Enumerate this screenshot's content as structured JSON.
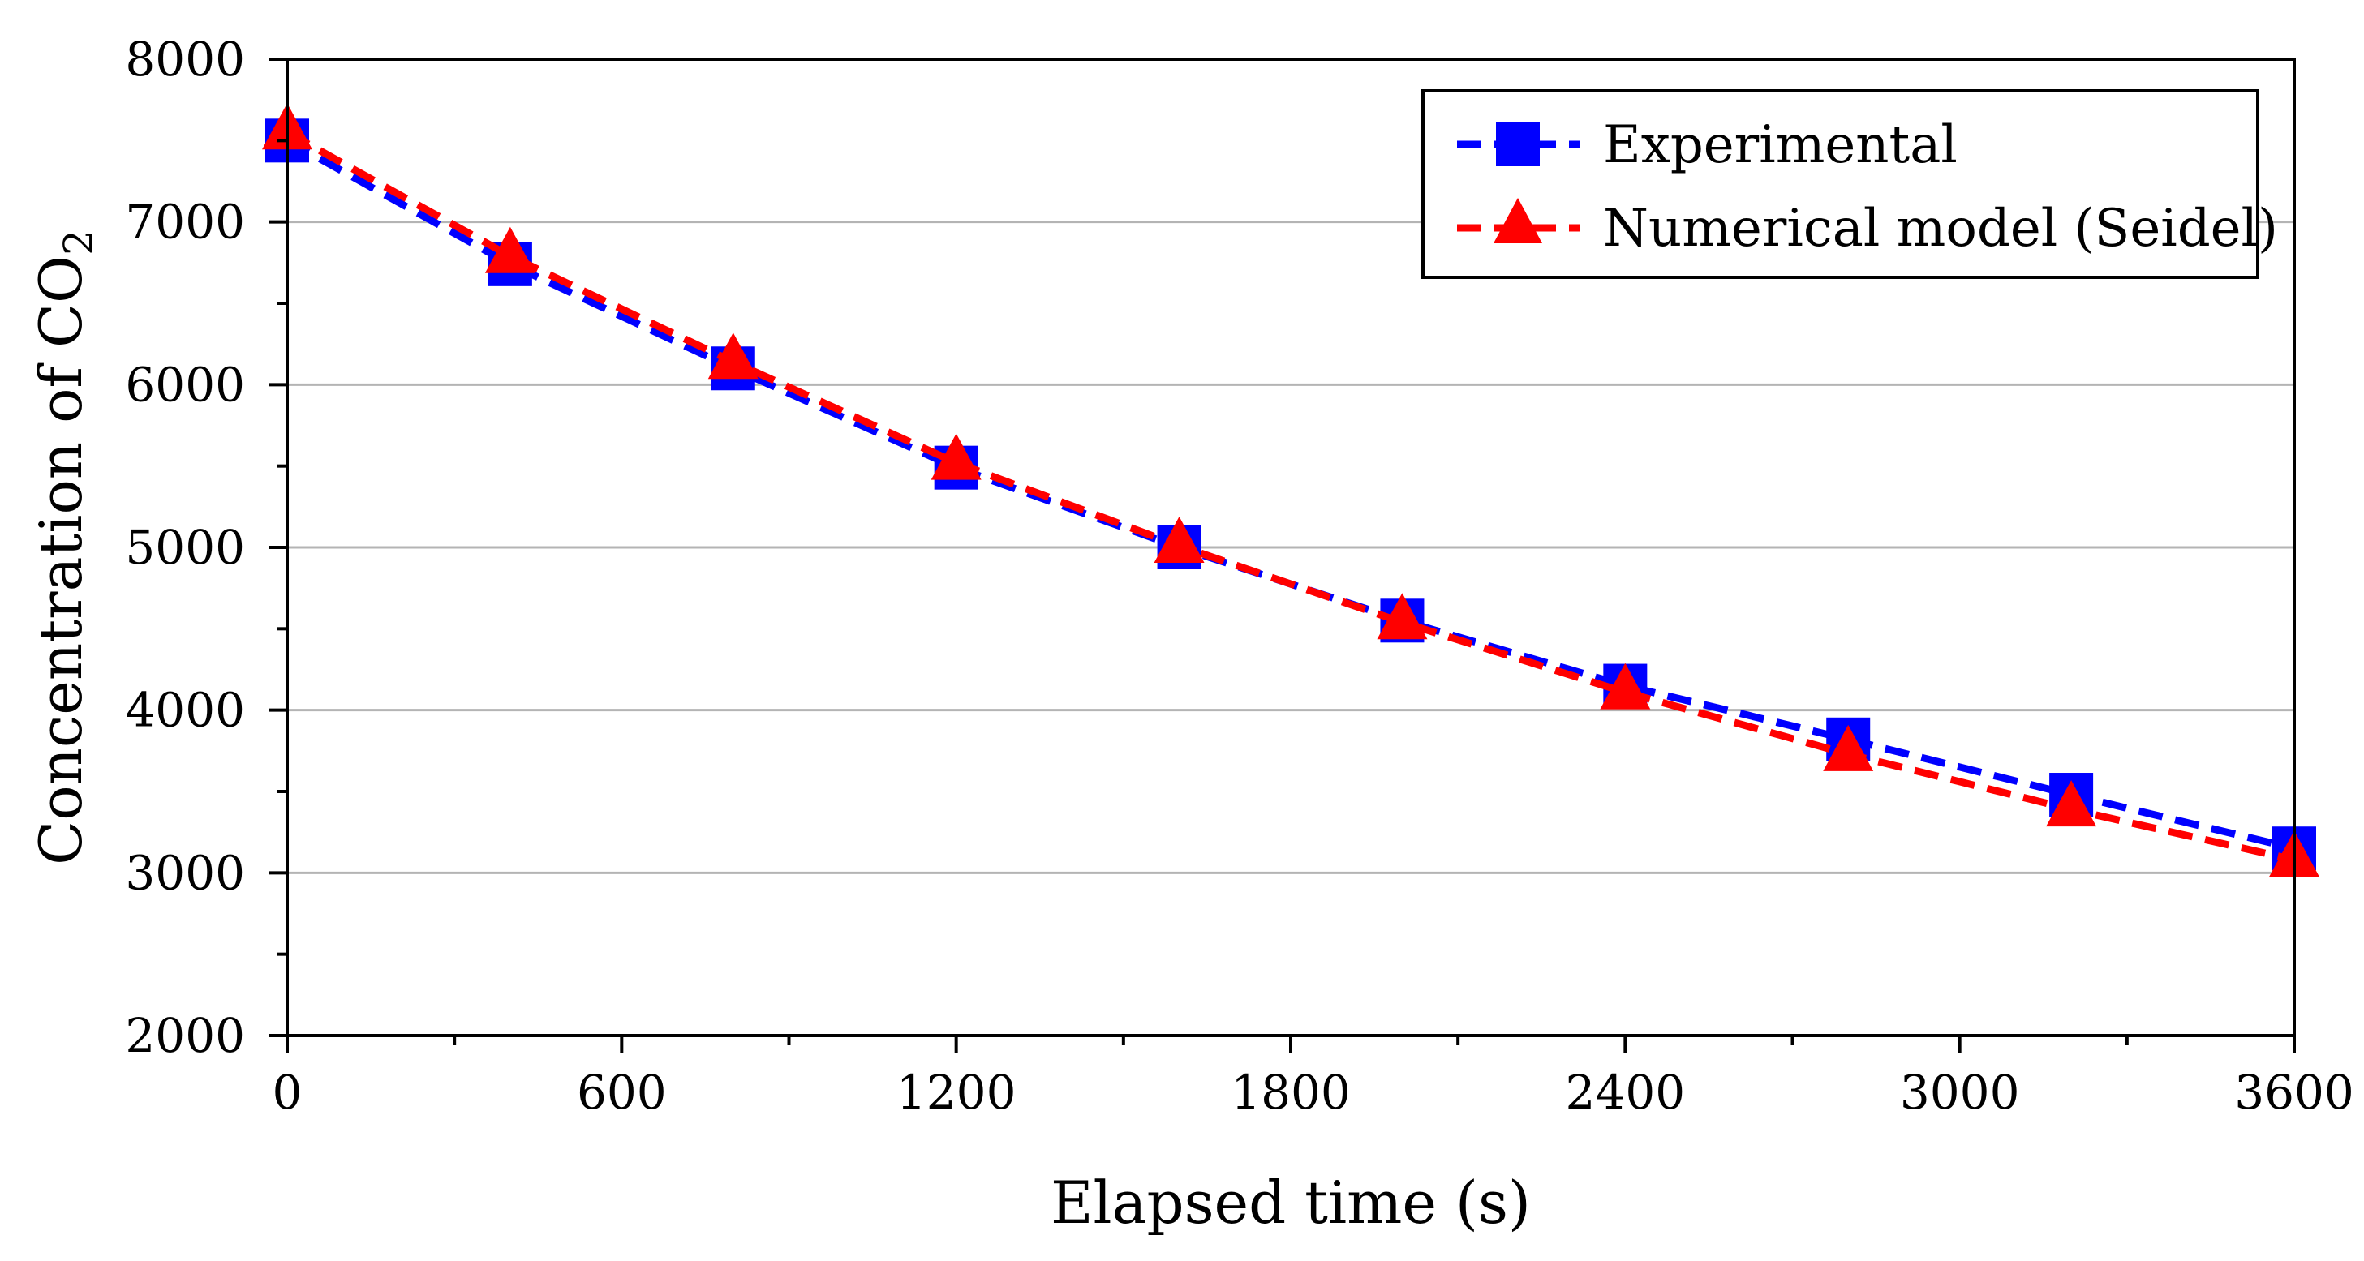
{
  "chart_data": {
    "type": "line",
    "title": "",
    "xlabel": "Elapsed time (s)",
    "ylabel": "Concentration of CO",
    "ylabel_subscript": "2",
    "xlim": [
      0,
      3600
    ],
    "ylim": [
      2000,
      8000
    ],
    "x_major_ticks": [
      0,
      600,
      1200,
      1800,
      2400,
      3000,
      3600
    ],
    "x_minor_ticks": [
      300,
      900,
      1500,
      2100,
      2700,
      3300
    ],
    "y_major_ticks": [
      2000,
      3000,
      4000,
      5000,
      6000,
      7000,
      8000
    ],
    "y_minor_ticks": [
      2500,
      3500,
      4500,
      5500,
      6500,
      7500
    ],
    "x_tick_labels": [
      "0",
      "600",
      "1200",
      "1800",
      "2400",
      "3000",
      "3600"
    ],
    "y_tick_labels": [
      "2000",
      "3000",
      "4000",
      "5000",
      "6000",
      "7000",
      "8000"
    ],
    "grid": "horizontal",
    "legend_position": "top-right",
    "x": [
      0,
      400,
      800,
      1200,
      1600,
      2000,
      2400,
      2800,
      3200,
      3600
    ],
    "series": [
      {
        "name": "Experimental",
        "marker": "square",
        "color": "#0000ff",
        "values": [
          7500,
          6740,
          6100,
          5490,
          5000,
          4550,
          4150,
          3820,
          3480,
          3150
        ]
      },
      {
        "name": "Numerical model (Seidel)",
        "marker": "triangle",
        "color": "#ff0000",
        "values": [
          7550,
          6790,
          6140,
          5520,
          5010,
          4540,
          4110,
          3730,
          3390,
          3080
        ]
      }
    ]
  }
}
